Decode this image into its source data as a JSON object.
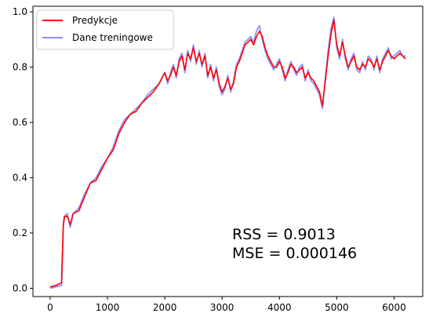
{
  "chart_data": {
    "type": "line",
    "title": "",
    "xlabel": "",
    "ylabel": "",
    "xlim": [
      -300,
      6500
    ],
    "ylim": [
      -0.03,
      1.02
    ],
    "xticks": [
      0,
      1000,
      2000,
      3000,
      4000,
      5000,
      6000
    ],
    "xtick_labels": [
      "0",
      "1000",
      "2000",
      "3000",
      "4000",
      "5000",
      "6000"
    ],
    "yticks": [
      0.0,
      0.2,
      0.4,
      0.6,
      0.8,
      1.0
    ],
    "ytick_labels": [
      "0.0",
      "0.2",
      "0.4",
      "0.6",
      "0.8",
      "1.0"
    ],
    "grid": false,
    "legend_position": "upper-left",
    "annotations": [
      "RSS = 0.9013",
      "MSE = 0.000146"
    ],
    "series": [
      {
        "name": "Predykcje",
        "color": "#ff0000",
        "x": [
          0,
          100,
          200,
          230,
          250,
          300,
          350,
          400,
          500,
          600,
          700,
          800,
          900,
          1000,
          1100,
          1200,
          1300,
          1400,
          1500,
          1600,
          1700,
          1800,
          1900,
          2000,
          2050,
          2100,
          2150,
          2200,
          2250,
          2300,
          2350,
          2400,
          2450,
          2500,
          2550,
          2600,
          2650,
          2700,
          2750,
          2800,
          2850,
          2900,
          2950,
          3000,
          3050,
          3100,
          3150,
          3200,
          3250,
          3300,
          3350,
          3400,
          3450,
          3500,
          3550,
          3600,
          3650,
          3700,
          3750,
          3800,
          3850,
          3900,
          3950,
          4000,
          4050,
          4100,
          4150,
          4200,
          4250,
          4300,
          4350,
          4400,
          4450,
          4500,
          4550,
          4600,
          4650,
          4700,
          4750,
          4800,
          4850,
          4900,
          4950,
          5000,
          5050,
          5100,
          5150,
          5200,
          5250,
          5300,
          5350,
          5400,
          5450,
          5500,
          5550,
          5600,
          5650,
          5700,
          5750,
          5800,
          5850,
          5900,
          5950,
          6000,
          6050,
          6100,
          6150,
          6200
        ],
        "y": [
          0.005,
          0.01,
          0.02,
          0.23,
          0.26,
          0.26,
          0.23,
          0.27,
          0.28,
          0.33,
          0.38,
          0.39,
          0.43,
          0.47,
          0.5,
          0.56,
          0.6,
          0.63,
          0.64,
          0.67,
          0.69,
          0.71,
          0.74,
          0.78,
          0.75,
          0.77,
          0.8,
          0.77,
          0.82,
          0.84,
          0.79,
          0.85,
          0.83,
          0.87,
          0.82,
          0.85,
          0.81,
          0.84,
          0.77,
          0.8,
          0.76,
          0.79,
          0.74,
          0.71,
          0.73,
          0.76,
          0.72,
          0.74,
          0.8,
          0.82,
          0.85,
          0.88,
          0.89,
          0.9,
          0.88,
          0.91,
          0.93,
          0.91,
          0.87,
          0.84,
          0.82,
          0.8,
          0.8,
          0.82,
          0.8,
          0.76,
          0.78,
          0.81,
          0.8,
          0.78,
          0.79,
          0.8,
          0.76,
          0.78,
          0.76,
          0.75,
          0.73,
          0.71,
          0.66,
          0.75,
          0.84,
          0.92,
          0.97,
          0.88,
          0.84,
          0.89,
          0.84,
          0.8,
          0.82,
          0.84,
          0.8,
          0.79,
          0.81,
          0.8,
          0.83,
          0.82,
          0.8,
          0.83,
          0.79,
          0.82,
          0.84,
          0.86,
          0.84,
          0.83,
          0.84,
          0.85,
          0.84,
          0.83
        ]
      },
      {
        "name": "Dane treningowe",
        "color": "#7b7bff",
        "x": [
          0,
          100,
          200,
          230,
          250,
          300,
          350,
          400,
          500,
          600,
          700,
          800,
          900,
          1000,
          1100,
          1200,
          1300,
          1400,
          1500,
          1600,
          1700,
          1800,
          1900,
          2000,
          2050,
          2100,
          2150,
          2200,
          2250,
          2300,
          2350,
          2400,
          2450,
          2500,
          2550,
          2600,
          2650,
          2700,
          2750,
          2800,
          2850,
          2900,
          2950,
          3000,
          3050,
          3100,
          3150,
          3200,
          3250,
          3300,
          3350,
          3400,
          3450,
          3500,
          3550,
          3600,
          3650,
          3700,
          3750,
          3800,
          3850,
          3900,
          3950,
          4000,
          4050,
          4100,
          4150,
          4200,
          4250,
          4300,
          4350,
          4400,
          4450,
          4500,
          4550,
          4600,
          4650,
          4700,
          4750,
          4800,
          4850,
          4900,
          4950,
          5000,
          5050,
          5100,
          5150,
          5200,
          5250,
          5300,
          5350,
          5400,
          5450,
          5500,
          5550,
          5600,
          5650,
          5700,
          5750,
          5800,
          5850,
          5900,
          5950,
          6000,
          6050,
          6100,
          6150,
          6200
        ],
        "y": [
          0.0,
          0.005,
          0.01,
          0.22,
          0.26,
          0.27,
          0.22,
          0.27,
          0.29,
          0.34,
          0.38,
          0.4,
          0.44,
          0.47,
          0.51,
          0.57,
          0.61,
          0.63,
          0.65,
          0.67,
          0.7,
          0.72,
          0.74,
          0.78,
          0.74,
          0.78,
          0.81,
          0.76,
          0.83,
          0.85,
          0.78,
          0.86,
          0.82,
          0.88,
          0.81,
          0.86,
          0.8,
          0.85,
          0.76,
          0.81,
          0.75,
          0.8,
          0.73,
          0.7,
          0.72,
          0.77,
          0.71,
          0.75,
          0.81,
          0.83,
          0.86,
          0.89,
          0.9,
          0.91,
          0.89,
          0.93,
          0.95,
          0.9,
          0.86,
          0.83,
          0.81,
          0.79,
          0.81,
          0.83,
          0.79,
          0.75,
          0.79,
          0.82,
          0.79,
          0.77,
          0.8,
          0.81,
          0.75,
          0.79,
          0.75,
          0.74,
          0.72,
          0.7,
          0.65,
          0.76,
          0.86,
          0.94,
          0.98,
          0.87,
          0.83,
          0.9,
          0.83,
          0.79,
          0.83,
          0.85,
          0.79,
          0.78,
          0.82,
          0.79,
          0.84,
          0.83,
          0.79,
          0.84,
          0.78,
          0.83,
          0.85,
          0.87,
          0.83,
          0.84,
          0.85,
          0.86,
          0.84,
          0.84
        ]
      }
    ]
  }
}
